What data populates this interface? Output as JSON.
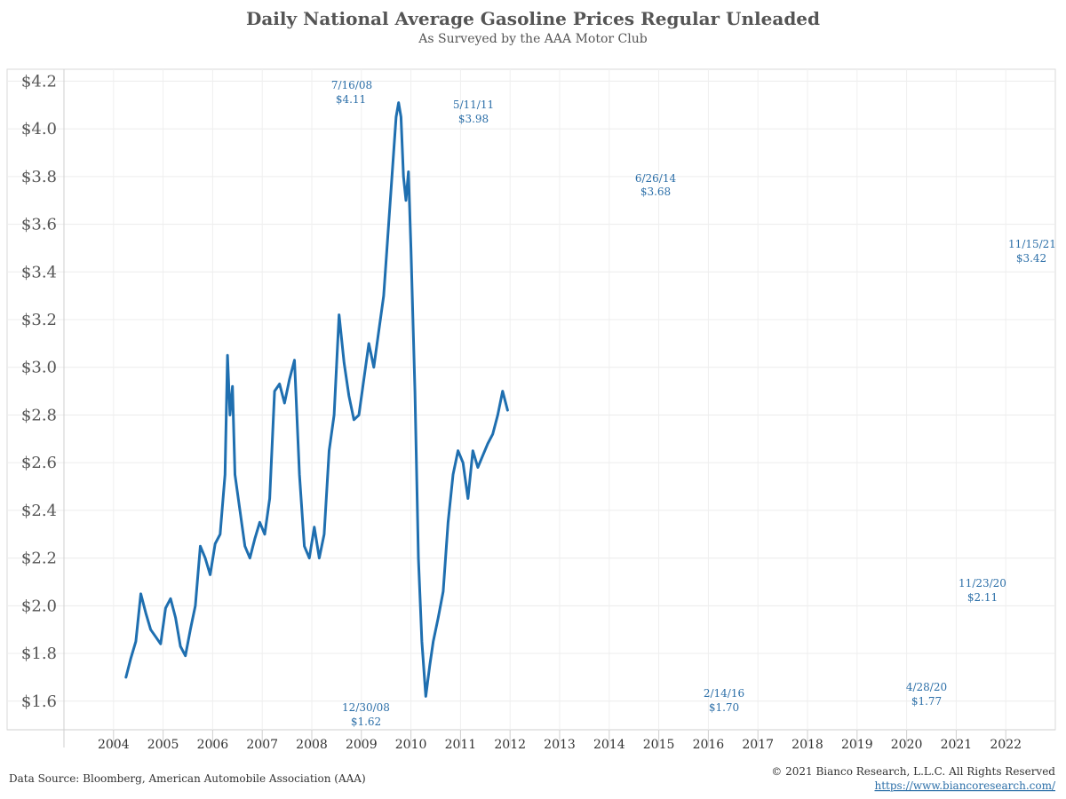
{
  "chart_data": {
    "type": "line",
    "title": "Daily National Average Gasoline Prices Regular Unleaded",
    "subtitle": "As Surveyed by the AAA Motor Club",
    "xlabel": "",
    "ylabel": "",
    "xlim": [
      2003.0,
      2023.0
    ],
    "ylim": [
      1.48,
      4.25
    ],
    "grid": true,
    "line_color": "#1f6fb0",
    "x_ticks": [
      "2004",
      "2005",
      "2006",
      "2007",
      "2008",
      "2009",
      "2010",
      "2011",
      "2012",
      "2013",
      "2014",
      "2015",
      "2016",
      "2017",
      "2018",
      "2019",
      "2020",
      "2021",
      "2022"
    ],
    "y_ticks": [
      "$1.6",
      "$1.8",
      "$2.0",
      "$2.2",
      "$2.4",
      "$2.6",
      "$2.8",
      "$3.0",
      "$3.2",
      "$3.4",
      "$3.6",
      "$3.8",
      "$4.0",
      "$4.2"
    ],
    "series": [
      {
        "name": "",
        "points": [
          [
            2004.25,
            1.7
          ],
          [
            2004.35,
            1.78
          ],
          [
            2004.45,
            1.85
          ],
          [
            2004.55,
            2.05
          ],
          [
            2004.65,
            1.97
          ],
          [
            2004.75,
            1.9
          ],
          [
            2004.85,
            1.87
          ],
          [
            2004.95,
            1.84
          ],
          [
            2005.05,
            1.99
          ],
          [
            2005.15,
            2.03
          ],
          [
            2005.25,
            1.95
          ],
          [
            2005.35,
            1.83
          ],
          [
            2005.45,
            1.79
          ],
          [
            2005.55,
            1.9
          ],
          [
            2005.65,
            2.0
          ],
          [
            2005.75,
            2.25
          ],
          [
            2005.85,
            2.2
          ],
          [
            2005.95,
            2.13
          ],
          [
            2006.05,
            2.26
          ],
          [
            2006.15,
            2.3
          ],
          [
            2006.25,
            2.55
          ],
          [
            2006.3,
            3.05
          ],
          [
            2006.35,
            2.8
          ],
          [
            2006.4,
            2.92
          ],
          [
            2006.45,
            2.55
          ],
          [
            2006.55,
            2.4
          ],
          [
            2006.65,
            2.25
          ],
          [
            2006.75,
            2.2
          ],
          [
            2006.85,
            2.28
          ],
          [
            2006.95,
            2.35
          ],
          [
            2007.05,
            2.3
          ],
          [
            2007.15,
            2.45
          ],
          [
            2007.25,
            2.9
          ],
          [
            2007.35,
            2.93
          ],
          [
            2007.45,
            2.85
          ],
          [
            2007.55,
            2.95
          ],
          [
            2007.65,
            3.03
          ],
          [
            2007.75,
            2.55
          ],
          [
            2007.85,
            2.25
          ],
          [
            2007.95,
            2.2
          ],
          [
            2008.05,
            2.33
          ],
          [
            2008.15,
            2.2
          ],
          [
            2008.25,
            2.3
          ],
          [
            2008.35,
            2.65
          ],
          [
            2008.45,
            2.8
          ],
          [
            2008.55,
            3.22
          ],
          [
            2008.65,
            3.02
          ],
          [
            2008.75,
            2.88
          ],
          [
            2008.85,
            2.78
          ],
          [
            2008.95,
            2.8
          ],
          [
            2009.05,
            2.95
          ],
          [
            2009.15,
            3.1
          ],
          [
            2009.25,
            3.0
          ],
          [
            2009.35,
            3.15
          ],
          [
            2009.45,
            3.3
          ],
          [
            2009.55,
            3.6
          ],
          [
            2009.65,
            3.9
          ],
          [
            2009.7,
            4.05
          ],
          [
            2009.75,
            4.11
          ],
          [
            2009.8,
            4.05
          ],
          [
            2009.85,
            3.8
          ],
          [
            2009.9,
            3.7
          ],
          [
            2009.95,
            3.82
          ],
          [
            2010.0,
            3.5
          ],
          [
            2010.08,
            2.9
          ],
          [
            2010.15,
            2.2
          ],
          [
            2010.22,
            1.85
          ],
          [
            2010.3,
            1.62
          ],
          [
            2010.38,
            1.75
          ],
          [
            2010.45,
            1.85
          ],
          [
            2010.55,
            1.95
          ],
          [
            2010.65,
            2.06
          ],
          [
            2010.75,
            2.35
          ],
          [
            2010.85,
            2.55
          ],
          [
            2010.95,
            2.65
          ],
          [
            2011.05,
            2.6
          ],
          [
            2011.15,
            2.45
          ],
          [
            2011.25,
            2.65
          ],
          [
            2011.35,
            2.58
          ],
          [
            2011.45,
            2.63
          ],
          [
            2011.55,
            2.68
          ],
          [
            2011.65,
            2.72
          ],
          [
            2011.75,
            2.8
          ],
          [
            2011.85,
            2.9
          ],
          [
            2011.95,
            2.82
          ]
        ]
      }
    ],
    "annotations": [
      {
        "date": "7/16/08",
        "value": "$4.11"
      },
      {
        "date": "12/30/08",
        "value": "$1.62"
      },
      {
        "date": "5/11/11",
        "value": "$3.98"
      },
      {
        "date": "6/26/14",
        "value": "$3.68"
      },
      {
        "date": "2/14/16",
        "value": "$1.70"
      },
      {
        "date": "4/28/20",
        "value": "$1.77"
      },
      {
        "date": "11/23/20",
        "value": "$2.11"
      },
      {
        "date": "11/15/21",
        "value": "$3.42"
      }
    ]
  },
  "footer": {
    "source": "Data Source: Bloomberg, American Automobile Association (AAA)",
    "copyright": "© 2021 Bianco Research, L.L.C. All Rights Reserved",
    "url": "https://www.biancoresearch.com/"
  }
}
